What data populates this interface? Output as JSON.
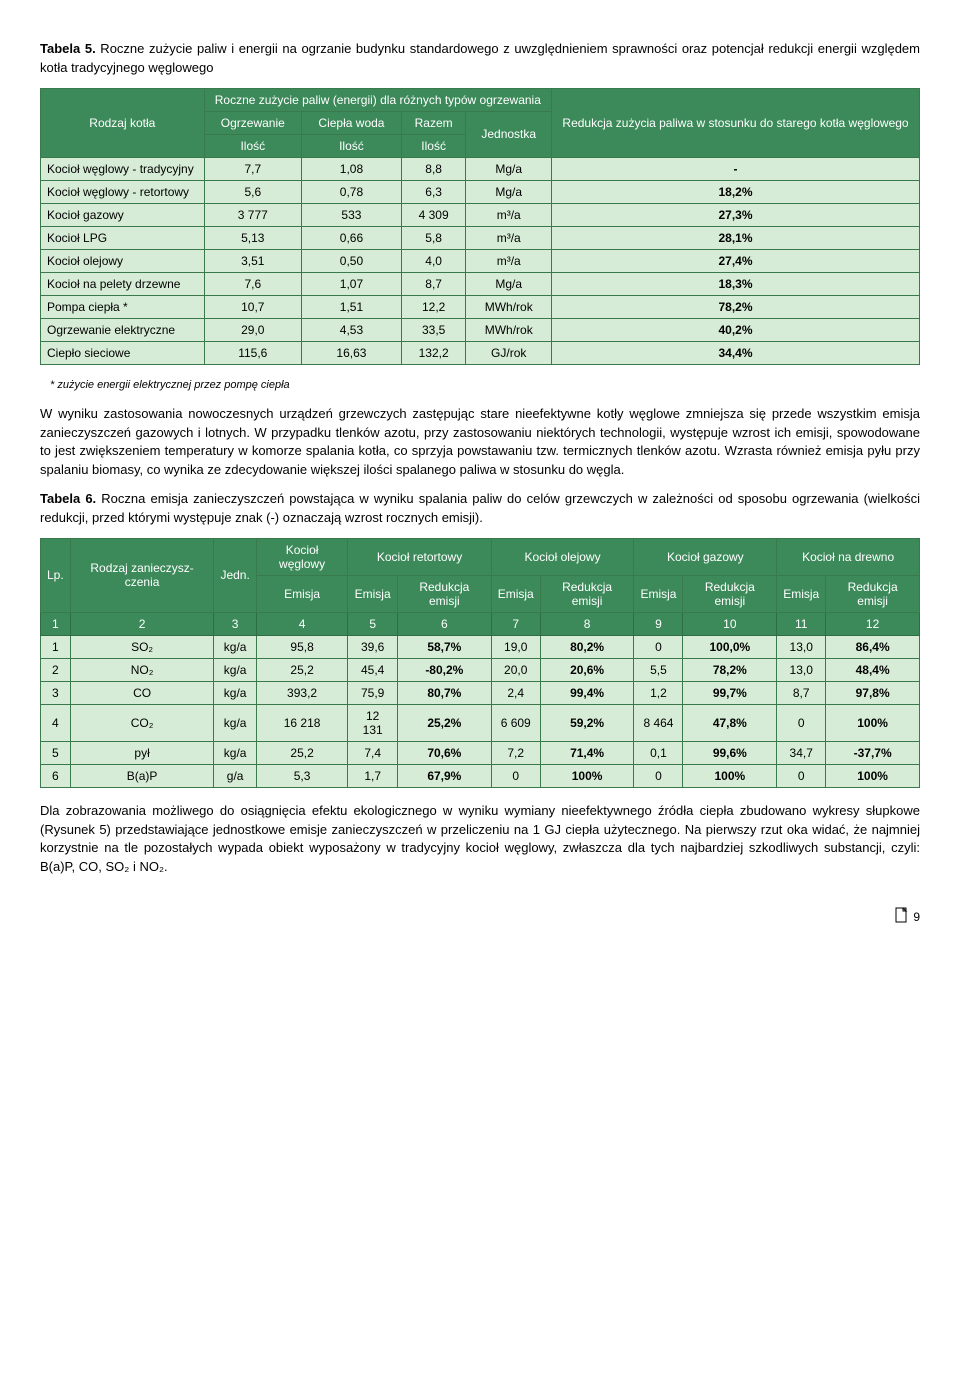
{
  "t5": {
    "caption_bold": "Tabela 5.",
    "caption_rest": " Roczne zużycie paliw i energii na ogrzanie budynku standardowego z uwzględnieniem sprawności oraz potencjał redukcji energii względem kotła tradycyjnego węglowego",
    "head_rodzaj": "Rodzaj kotła",
    "head_top": "Roczne zużycie paliw (energii) dla różnych typów ogrzewania",
    "head_ogrz": "Ogrzewanie",
    "head_ciepla": "Ciepła woda",
    "head_razem": "Razem",
    "head_jedn": "Jednostka",
    "head_ilosc": "Ilość",
    "head_red": "Redukcja zużycia paliwa w stosunku do starego kotła węglowego",
    "rows": [
      {
        "n": "Kocioł węglowy - tradycyjny",
        "a": "7,7",
        "b": "1,08",
        "c": "8,8",
        "u": "Mg/a",
        "r": "-"
      },
      {
        "n": "Kocioł węglowy - retortowy",
        "a": "5,6",
        "b": "0,78",
        "c": "6,3",
        "u": "Mg/a",
        "r": "18,2%"
      },
      {
        "n": "Kocioł gazowy",
        "a": "3 777",
        "b": "533",
        "c": "4 309",
        "u": "m³/a",
        "r": "27,3%"
      },
      {
        "n": "Kocioł LPG",
        "a": "5,13",
        "b": "0,66",
        "c": "5,8",
        "u": "m³/a",
        "r": "28,1%"
      },
      {
        "n": "Kocioł olejowy",
        "a": "3,51",
        "b": "0,50",
        "c": "4,0",
        "u": "m³/a",
        "r": "27,4%"
      },
      {
        "n": "Kocioł na pelety drzewne",
        "a": "7,6",
        "b": "1,07",
        "c": "8,7",
        "u": "Mg/a",
        "r": "18,3%"
      },
      {
        "n": "Pompa ciepła *",
        "a": "10,7",
        "b": "1,51",
        "c": "12,2",
        "u": "MWh/rok",
        "r": "78,2%"
      },
      {
        "n": "Ogrzewanie elektryczne",
        "a": "29,0",
        "b": "4,53",
        "c": "33,5",
        "u": "MWh/rok",
        "r": "40,2%"
      },
      {
        "n": "Ciepło sieciowe",
        "a": "115,6",
        "b": "16,63",
        "c": "132,2",
        "u": "GJ/rok",
        "r": "34,4%"
      }
    ],
    "footnote": "* zużycie energii elektrycznej przez pompę ciepła"
  },
  "para1": "W wyniku zastosowania nowoczesnych urządzeń grzewczych zastępując stare nieefektywne kotły węglowe zmniejsza się przede wszystkim emisja zanieczyszczeń gazowych i lotnych. W przypadku tlenków azotu, przy zastosowaniu niektórych technologii, występuje wzrost ich emisji, spowodowane to jest zwiększeniem temperatury w komorze spalania kotła, co sprzyja powstawaniu tzw. termicznych tlenków azotu. Wzrasta również emisja pyłu przy spalaniu biomasy, co wynika ze zdecydowanie większej ilości spalanego paliwa w stosunku do węgla.",
  "t6": {
    "caption_bold": "Tabela 6.",
    "caption_rest": " Roczna emisja zanieczyszczeń powstająca w wyniku spalania paliw do celów grzewczych w zależności od sposobu ogrzewania (wielkości redukcji, przed którymi występuje znak (-) oznaczają wzrost rocznych emisji).",
    "head_lp": "Lp.",
    "head_rodzaj": "Rodzaj zanieczysz-czenia",
    "head_jedn": "Jedn.",
    "head_kw": "Kocioł węglowy",
    "head_kr": "Kocioł retortowy",
    "head_ko": "Kocioł olejowy",
    "head_kg": "Kocioł gazowy",
    "head_kd": "Kocioł na drewno",
    "head_em": "Emisja",
    "head_red": "Redukcja emisji",
    "nums": [
      "1",
      "2",
      "3",
      "4",
      "5",
      "6",
      "7",
      "8",
      "9",
      "10",
      "11",
      "12"
    ],
    "rows": [
      {
        "lp": "1",
        "n": "SO₂",
        "j": "kg/a",
        "kw": "95,8",
        "kre": "39,6",
        "krr": "58,7%",
        "koe": "19,0",
        "kor": "80,2%",
        "kge": "0",
        "kgr": "100,0%",
        "kde": "13,0",
        "kdr": "86,4%"
      },
      {
        "lp": "2",
        "n": "NO₂",
        "j": "kg/a",
        "kw": "25,2",
        "kre": "45,4",
        "krr": "-80,2%",
        "koe": "20,0",
        "kor": "20,6%",
        "kge": "5,5",
        "kgr": "78,2%",
        "kde": "13,0",
        "kdr": "48,4%"
      },
      {
        "lp": "3",
        "n": "CO",
        "j": "kg/a",
        "kw": "393,2",
        "kre": "75,9",
        "krr": "80,7%",
        "koe": "2,4",
        "kor": "99,4%",
        "kge": "1,2",
        "kgr": "99,7%",
        "kde": "8,7",
        "kdr": "97,8%"
      },
      {
        "lp": "4",
        "n": "CO₂",
        "j": "kg/a",
        "kw": "16 218",
        "kre": "12 131",
        "krr": "25,2%",
        "koe": "6 609",
        "kor": "59,2%",
        "kge": "8 464",
        "kgr": "47,8%",
        "kde": "0",
        "kdr": "100%"
      },
      {
        "lp": "5",
        "n": "pył",
        "j": "kg/a",
        "kw": "25,2",
        "kre": "7,4",
        "krr": "70,6%",
        "koe": "7,2",
        "kor": "71,4%",
        "kge": "0,1",
        "kgr": "99,6%",
        "kde": "34,7",
        "kdr": "-37,7%"
      },
      {
        "lp": "6",
        "n": "B(a)P",
        "j": "g/a",
        "kw": "5,3",
        "kre": "1,7",
        "krr": "67,9%",
        "koe": "0",
        "kor": "100%",
        "kge": "0",
        "kgr": "100%",
        "kde": "0",
        "kdr": "100%"
      }
    ]
  },
  "para2": "Dla zobrazowania możliwego do osiągnięcia efektu ekologicznego w wyniku wymiany nieefektywnego źródła ciepła zbudowano wykresy słupkowe (Rysunek 5) przedstawiające jednostkowe emisje zanieczyszczeń w przeliczeniu na 1 GJ ciepła użytecznego. Na pierwszy rzut oka widać, że najmniej korzystnie na tle pozostałych wypada obiekt wyposażony w tradycyjny kocioł węglowy, zwłaszcza dla tych najbardziej szkodliwych substancji, czyli: B(a)P, CO, SO₂ i NO₂.",
  "pagenum": "9"
}
